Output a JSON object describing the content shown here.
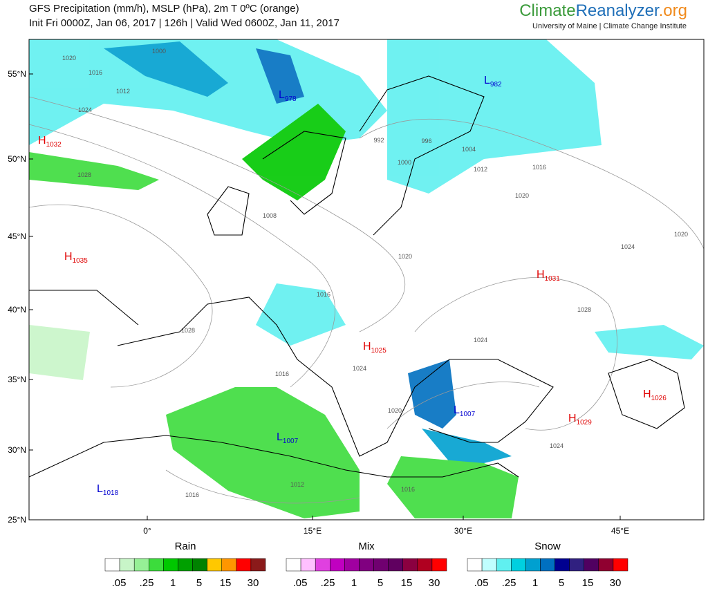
{
  "header": {
    "title": "GFS Precipitation (mm/h), MSLP (hPa), 2m T 0ºC (orange)",
    "subtitle": "Init Fri 0000Z, Jan 06, 2017 | 126h | Valid Wed 0600Z, Jan 11, 2017"
  },
  "logo": {
    "part1": "Climate",
    "part2": "Reanalyzer",
    "part3": ".org",
    "tagline": "University of Maine | Climate Change Institute"
  },
  "map": {
    "lat_labels": [
      "55°N",
      "50°N",
      "45°N",
      "40°N",
      "35°N",
      "30°N",
      "25°N"
    ],
    "lon_labels": [
      "0°",
      "15°E",
      "30°E",
      "45°E"
    ],
    "centers": [
      {
        "kind": "H",
        "value": "1032"
      },
      {
        "kind": "H",
        "value": "1035"
      },
      {
        "kind": "L",
        "value": "978"
      },
      {
        "kind": "L",
        "value": "982"
      },
      {
        "kind": "H",
        "value": "1031"
      },
      {
        "kind": "H",
        "value": "1025"
      },
      {
        "kind": "L",
        "value": "1007"
      },
      {
        "kind": "H",
        "value": "1029"
      },
      {
        "kind": "H",
        "value": "1026"
      },
      {
        "kind": "L",
        "value": "1007"
      },
      {
        "kind": "L",
        "value": "1018"
      }
    ],
    "isobar_labels": [
      "1000",
      "1020",
      "1016",
      "1012",
      "1024",
      "1028",
      "1008",
      "992",
      "996",
      "1000",
      "1004",
      "1012",
      "1016",
      "1020",
      "1020",
      "1016",
      "1024",
      "1024",
      "1016",
      "1020",
      "1024",
      "1012",
      "1016",
      "1016",
      "1024",
      "1020",
      "1028",
      "1028"
    ]
  },
  "legend": [
    {
      "title": "Rain",
      "colors": [
        "#ffffff",
        "#c8f5c8",
        "#96f096",
        "#3cdc3c",
        "#00c800",
        "#00a000",
        "#008200",
        "#ffc800",
        "#ff9600",
        "#ff0000",
        "#8b1a1a"
      ],
      "labels": [
        ".05",
        ".25",
        "1",
        "5",
        "15",
        "30"
      ]
    },
    {
      "title": "Mix",
      "colors": [
        "#ffffff",
        "#ffc0ff",
        "#e040e0",
        "#c000c0",
        "#a000a0",
        "#800080",
        "#700070",
        "#600060",
        "#8b0040",
        "#b00020",
        "#ff0000"
      ],
      "labels": [
        ".05",
        ".25",
        "1",
        "5",
        "15",
        "30"
      ]
    },
    {
      "title": "Snow",
      "colors": [
        "#ffffff",
        "#c0ffff",
        "#60f0f0",
        "#00d0e0",
        "#00a0d0",
        "#0070c0",
        "#000090",
        "#302080",
        "#500060",
        "#900030",
        "#ff0000"
      ],
      "labels": [
        ".05",
        ".25",
        "1",
        "5",
        "15",
        "30"
      ]
    }
  ]
}
